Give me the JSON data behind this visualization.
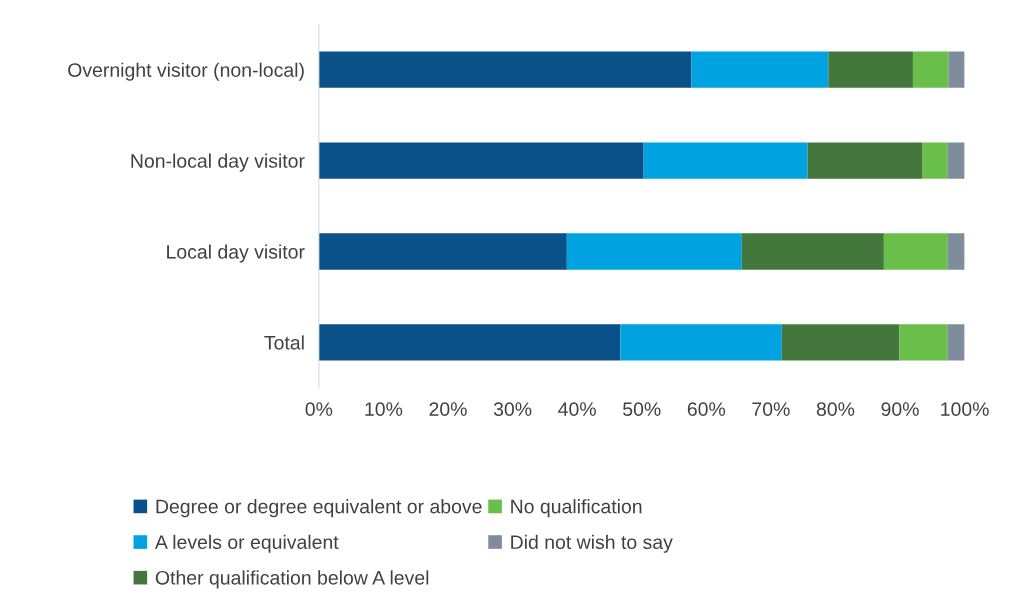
{
  "chart_data": {
    "type": "bar",
    "orientation": "horizontal",
    "stacked": true,
    "categories": [
      "Overnight visitor (non-local)",
      "Non-local day visitor",
      "Local day visitor",
      "Total"
    ],
    "series": [
      {
        "name": "Degree or degree equivalent or above",
        "color": "#0b5189",
        "values": [
          57.7,
          50.3,
          38.4,
          46.7
        ]
      },
      {
        "name": "A levels or equivalent",
        "color": "#00a3e0",
        "values": [
          21.2,
          25.4,
          27.1,
          25.0
        ]
      },
      {
        "name": "Other qualification below A level",
        "color": "#44773b",
        "values": [
          13.1,
          17.8,
          22.0,
          18.2
        ]
      },
      {
        "name": "No qualification",
        "color": "#6abf4b",
        "values": [
          5.5,
          3.9,
          9.9,
          7.5
        ]
      },
      {
        "name": "Did not wish to say",
        "color": "#7f8c9b",
        "values": [
          2.5,
          2.6,
          2.6,
          2.6
        ]
      }
    ],
    "xlim": [
      0,
      100
    ],
    "xticks": [
      {
        "value": 0,
        "label": "0%"
      },
      {
        "value": 10,
        "label": "10%"
      },
      {
        "value": 20,
        "label": "20%"
      },
      {
        "value": 30,
        "label": "30%"
      },
      {
        "value": 40,
        "label": "40%"
      },
      {
        "value": 50,
        "label": "50%"
      },
      {
        "value": 60,
        "label": "60%"
      },
      {
        "value": 70,
        "label": "70%"
      },
      {
        "value": 80,
        "label": "80%"
      },
      {
        "value": 90,
        "label": "90%"
      },
      {
        "value": 100,
        "label": "100%"
      }
    ],
    "grid": false,
    "legend": "bottom"
  }
}
